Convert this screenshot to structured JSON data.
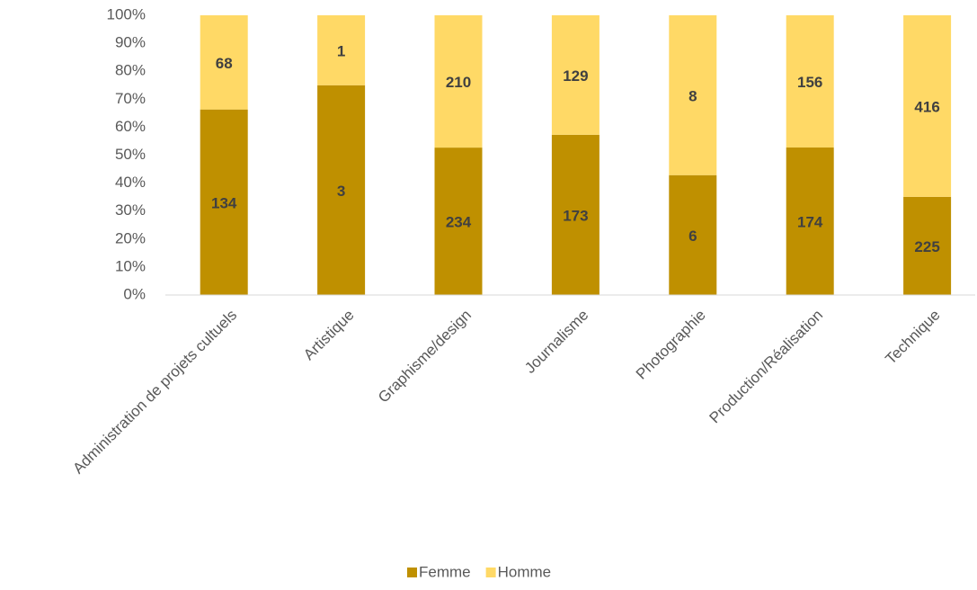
{
  "chart_data": {
    "type": "bar",
    "stacking": "percent",
    "categories": [
      "Administration de projets cultuels",
      "Artistique",
      "Graphisme/design",
      "Journalisme",
      "Photographie",
      "Production/Réalisation",
      "Technique"
    ],
    "series": [
      {
        "name": "Femme",
        "color": "#bf9000",
        "values": [
          134,
          3,
          234,
          173,
          6,
          174,
          225
        ]
      },
      {
        "name": "Homme",
        "color": "#ffd966",
        "values": [
          68,
          1,
          210,
          129,
          8,
          156,
          416
        ]
      }
    ],
    "ylim": [
      0,
      100
    ],
    "yticks": [
      {
        "value": 0,
        "label": "0%"
      },
      {
        "value": 10,
        "label": "10%"
      },
      {
        "value": 20,
        "label": "20%"
      },
      {
        "value": 30,
        "label": "30%"
      },
      {
        "value": 40,
        "label": "40%"
      },
      {
        "value": 50,
        "label": "50%"
      },
      {
        "value": 60,
        "label": "60%"
      },
      {
        "value": 70,
        "label": "70%"
      },
      {
        "value": 80,
        "label": "80%"
      },
      {
        "value": 90,
        "label": "90%"
      },
      {
        "value": 100,
        "label": "100%"
      }
    ],
    "grid": false,
    "legend": "bottom"
  }
}
